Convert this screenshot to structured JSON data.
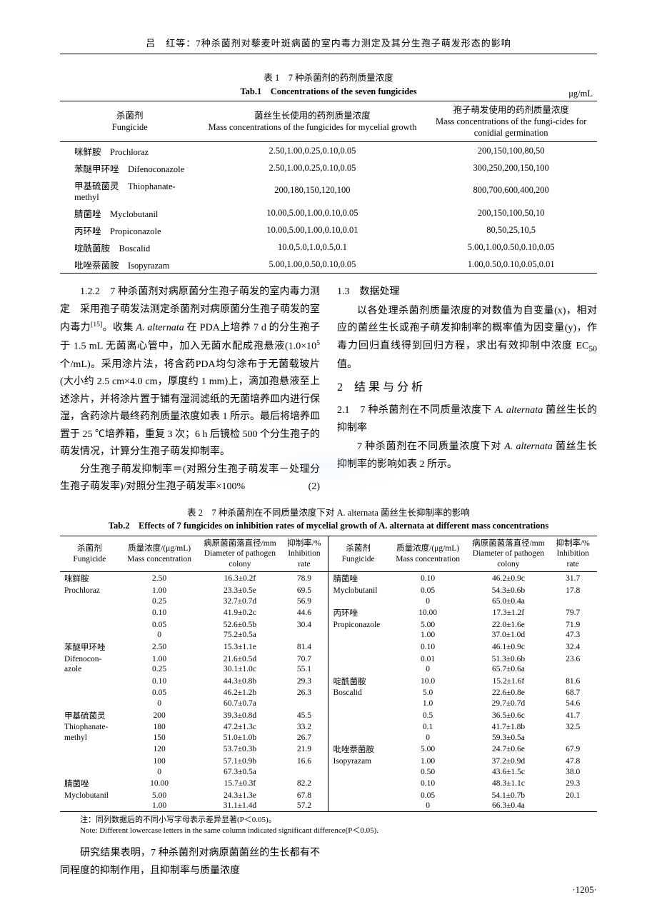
{
  "header": "吕　红等：7种杀菌剂对藜麦叶斑病菌的室内毒力测定及其分生孢子萌发形态的影响",
  "table1": {
    "caption_cn": "表 1　7 种杀菌剂的药剂质量浓度",
    "caption_en_prefix": "Tab.1　Concentrations of the seven fungicides",
    "unit": "μg/mL",
    "headers": {
      "c1_cn": "杀菌剂",
      "c1_en": "Fungicide",
      "c2_cn": "菌丝生长使用的药剂质量浓度",
      "c2_en": "Mass concentrations of the fungicides for mycelial growth",
      "c3_cn": "孢子萌发使用的药剂质量浓度",
      "c3_en": "Mass concentrations of the fungi-cides for conidial germination"
    },
    "rows": [
      {
        "cn": "咪鲜胺",
        "en": "Prochloraz",
        "c2": "2.50,1.00,0.25,0.10,0.05",
        "c3": "200,150,100,80,50"
      },
      {
        "cn": "苯醚甲环唑",
        "en": "Difenoconazole",
        "c2": "2.50,1.00,0.25,0.10,0.05",
        "c3": "300,250,200,150,100"
      },
      {
        "cn": "甲基硫菌灵",
        "en": "Thiophanate-methyl",
        "c2": "200,180,150,120,100",
        "c3": "800,700,600,400,200"
      },
      {
        "cn": "腈菌唑",
        "en": "Myclobutanil",
        "c2": "10.00,5.00,1.00,0.10,0.05",
        "c3": "200,150,100,50,10"
      },
      {
        "cn": "丙环唑",
        "en": "Propiconazole",
        "c2": "10.00,5.00,1.00,0.10,0.01",
        "c3": "80,50,25,10,5"
      },
      {
        "cn": "啶酰菌胺",
        "en": "Boscalid",
        "c2": "10.0,5.0,1.0,0.5,0.1",
        "c3": "5.00,1.00,0.50,0.10,0.05"
      },
      {
        "cn": "吡唑萘菌胺",
        "en": "Isopyrazam",
        "c2": "5.00,1.00,0.50,0.10,0.05",
        "c3": "1.00,0.50,0.10,0.05,0.01"
      }
    ]
  },
  "body": {
    "p1_a": "1.2.2　7 种杀菌剂对病原菌分生孢子萌发的室内毒力测定　采用孢子萌发法测定杀菌剂对病原菌分生孢子萌发的室内毒力",
    "p1_ref": "[15]",
    "p1_b": "。收集 ",
    "p1_ital": "A. alternata",
    "p1_c": " 在 PDA上培养 7 d 的分生孢子于 1.5 mL 无菌离心管中，加入无菌水配成孢悬液(1.0×10",
    "p1_sup": "5",
    "p1_d": "个/mL)。采用涂片法，将含药PDA均匀涂布于无菌载玻片(大小约 2.5 cm×4.0 cm，厚度约 1 mm)上，滴加孢悬液至上述涂片，并将涂片置于铺有湿润滤纸的无菌培养皿内进行保湿，含药涂片最终药剂质量浓度如表 1 所示。最后将培养皿置于 25 ℃培养箱，重复 3 次；6 h 后镜检 500 个分生孢子的萌发情况，计算分生孢子萌发抑制率。",
    "p2": "分生孢子萌发抑制率＝(对照分生孢子萌发率－处理分生孢子萌发率)/对照分生孢子萌发率×100%",
    "eq_num": "(2)",
    "sec13": "1.3　数据处理",
    "p3": "以各处理杀菌剂质量浓度的对数值为自变量(x)，相对应的菌丝生长或孢子萌发抑制率的概率值为因变量(y)，作毒力回归直线得到回归方程，求出有效抑制中浓度 EC",
    "p3_sub": "50",
    "p3_tail": "值。",
    "sec2": "2　结 果 与 分 析",
    "sec21_a": "2.1　7 种杀菌剂在不同质量浓度下 ",
    "sec21_ital": "A. alternata",
    "sec21_b": " 菌丝生长的抑制率",
    "p4_a": "7 种杀菌剂在不同质量浓度下对 ",
    "p4_ital": "A. alternata",
    "p4_b": " 菌丝生长抑制率的影响如表 2 所示。"
  },
  "table2": {
    "caption_cn_a": "表 2　7 种杀菌剂在不同质量浓度下对 ",
    "caption_cn_ital": "A. alternata",
    "caption_cn_b": " 菌丝生长抑制率的影响",
    "caption_en": "Tab.2　Effects of 7 fungicides on inhibition rates of mycelial growth of A. alternata at different mass concentrations",
    "headers": {
      "h1_cn": "杀菌剂",
      "h1_en": "Fungicide",
      "h2_cn": "质量浓度/(μg/mL)",
      "h2_en": "Mass concentration",
      "h3_cn": "病原菌菌落直径/mm",
      "h3_en": "Diameter of pathogen colony",
      "h4_cn": "抑制率/%",
      "h4_en": "Inhibition rate"
    },
    "left": [
      {
        "f_cn": "咪鲜胺",
        "f_en": "Prochloraz",
        "rows": [
          {
            "c": "2.50",
            "d": "16.3±0.2f",
            "r": "78.9"
          },
          {
            "c": "1.00",
            "d": "23.3±0.5e",
            "r": "69.5"
          },
          {
            "c": "0.25",
            "d": "32.7±0.7d",
            "r": "56.9"
          },
          {
            "c": "0.10",
            "d": "41.9±0.2c",
            "r": "44.6"
          },
          {
            "c": "0.05",
            "d": "52.6±0.5b",
            "r": "30.4"
          },
          {
            "c": "0",
            "d": "75.2±0.5a",
            "r": ""
          }
        ]
      },
      {
        "f_cn": "苯醚甲环唑",
        "f_en": "Difenocon-azole",
        "rows": [
          {
            "c": "2.50",
            "d": "15.3±1.1e",
            "r": "81.4"
          },
          {
            "c": "1.00",
            "d": "21.6±0.5d",
            "r": "70.7"
          },
          {
            "c": "0.25",
            "d": "30.1±1.0c",
            "r": "55.1"
          },
          {
            "c": "0.10",
            "d": "44.3±0.8b",
            "r": "29.3"
          },
          {
            "c": "0.05",
            "d": "46.2±1.2b",
            "r": "26.3"
          },
          {
            "c": "0",
            "d": "60.7±0.7a",
            "r": ""
          }
        ]
      },
      {
        "f_cn": "甲基硫菌灵",
        "f_en": "Thiophanate-methyl",
        "rows": [
          {
            "c": "200",
            "d": "39.3±0.8d",
            "r": "45.5"
          },
          {
            "c": "180",
            "d": "47.2±1.3c",
            "r": "33.2"
          },
          {
            "c": "150",
            "d": "51.0±1.0b",
            "r": "26.7"
          },
          {
            "c": "120",
            "d": "53.7±0.3b",
            "r": "21.9"
          },
          {
            "c": "100",
            "d": "57.1±0.9b",
            "r": "16.6"
          },
          {
            "c": "0",
            "d": "67.3±0.5a",
            "r": ""
          }
        ]
      },
      {
        "f_cn": "腈菌唑",
        "f_en": "Myclobutanil",
        "rows": [
          {
            "c": "10.00",
            "d": "15.7±0.3f",
            "r": "82.2"
          },
          {
            "c": "5.00",
            "d": "24.3±1.3e",
            "r": "67.8"
          },
          {
            "c": "1.00",
            "d": "31.1±1.4d",
            "r": "57.2"
          }
        ]
      }
    ],
    "right": [
      {
        "f_cn": "腈菌唑",
        "f_en": "Myclobutanil",
        "rows": [
          {
            "c": "0.10",
            "d": "46.2±0.9c",
            "r": "31.7"
          },
          {
            "c": "0.05",
            "d": "54.3±0.6b",
            "r": "17.8"
          },
          {
            "c": "0",
            "d": "65.0±0.4a",
            "r": ""
          }
        ]
      },
      {
        "f_cn": "丙环唑",
        "f_en": "Propiconazole",
        "rows": [
          {
            "c": "10.00",
            "d": "17.3±1.2f",
            "r": "79.7"
          },
          {
            "c": "5.00",
            "d": "22.0±1.6e",
            "r": "71.9"
          },
          {
            "c": "1.00",
            "d": "37.0±1.0d",
            "r": "47.3"
          },
          {
            "c": "0.10",
            "d": "46.1±0.9c",
            "r": "32.4"
          },
          {
            "c": "0.01",
            "d": "51.3±0.6b",
            "r": "23.6"
          },
          {
            "c": "0",
            "d": "65.7±0.6a",
            "r": ""
          }
        ]
      },
      {
        "f_cn": "啶酰菌胺",
        "f_en": "Boscalid",
        "rows": [
          {
            "c": "10.0",
            "d": "15.2±1.6f",
            "r": "81.6"
          },
          {
            "c": "5.0",
            "d": "22.6±0.8e",
            "r": "68.7"
          },
          {
            "c": "1.0",
            "d": "29.7±0.7d",
            "r": "54.6"
          },
          {
            "c": "0.5",
            "d": "36.5±0.6c",
            "r": "41.7"
          },
          {
            "c": "0.1",
            "d": "41.7±1.8b",
            "r": "32.5"
          },
          {
            "c": "0",
            "d": "59.3±0.5a",
            "r": ""
          }
        ]
      },
      {
        "f_cn": "吡唑萘菌胺",
        "f_en": "Isopyrazam",
        "rows": [
          {
            "c": "5.00",
            "d": "24.7±0.6e",
            "r": "67.9"
          },
          {
            "c": "1.00",
            "d": "37.2±0.9d",
            "r": "47.8"
          },
          {
            "c": "0.50",
            "d": "43.6±1.5c",
            "r": "38.0"
          },
          {
            "c": "0.10",
            "d": "48.3±1.1c",
            "r": "29.3"
          },
          {
            "c": "0.05",
            "d": "54.1±0.7b",
            "r": "20.1"
          },
          {
            "c": "0",
            "d": "66.3±0.4a",
            "r": ""
          }
        ]
      }
    ],
    "footnote_cn": "注：同列数据后的不同小写字母表示差异显著(P＜0.05)。",
    "footnote_en": "Note: Different lowercase letters in the same column indicated significant difference(P＜0.05)."
  },
  "bottom": {
    "p": "研究结果表明，7 种杀菌剂对病原菌菌丝的生长都有不同程度的抑制作用，且抑制率与质量浓度"
  },
  "pagenum": "·1205·"
}
